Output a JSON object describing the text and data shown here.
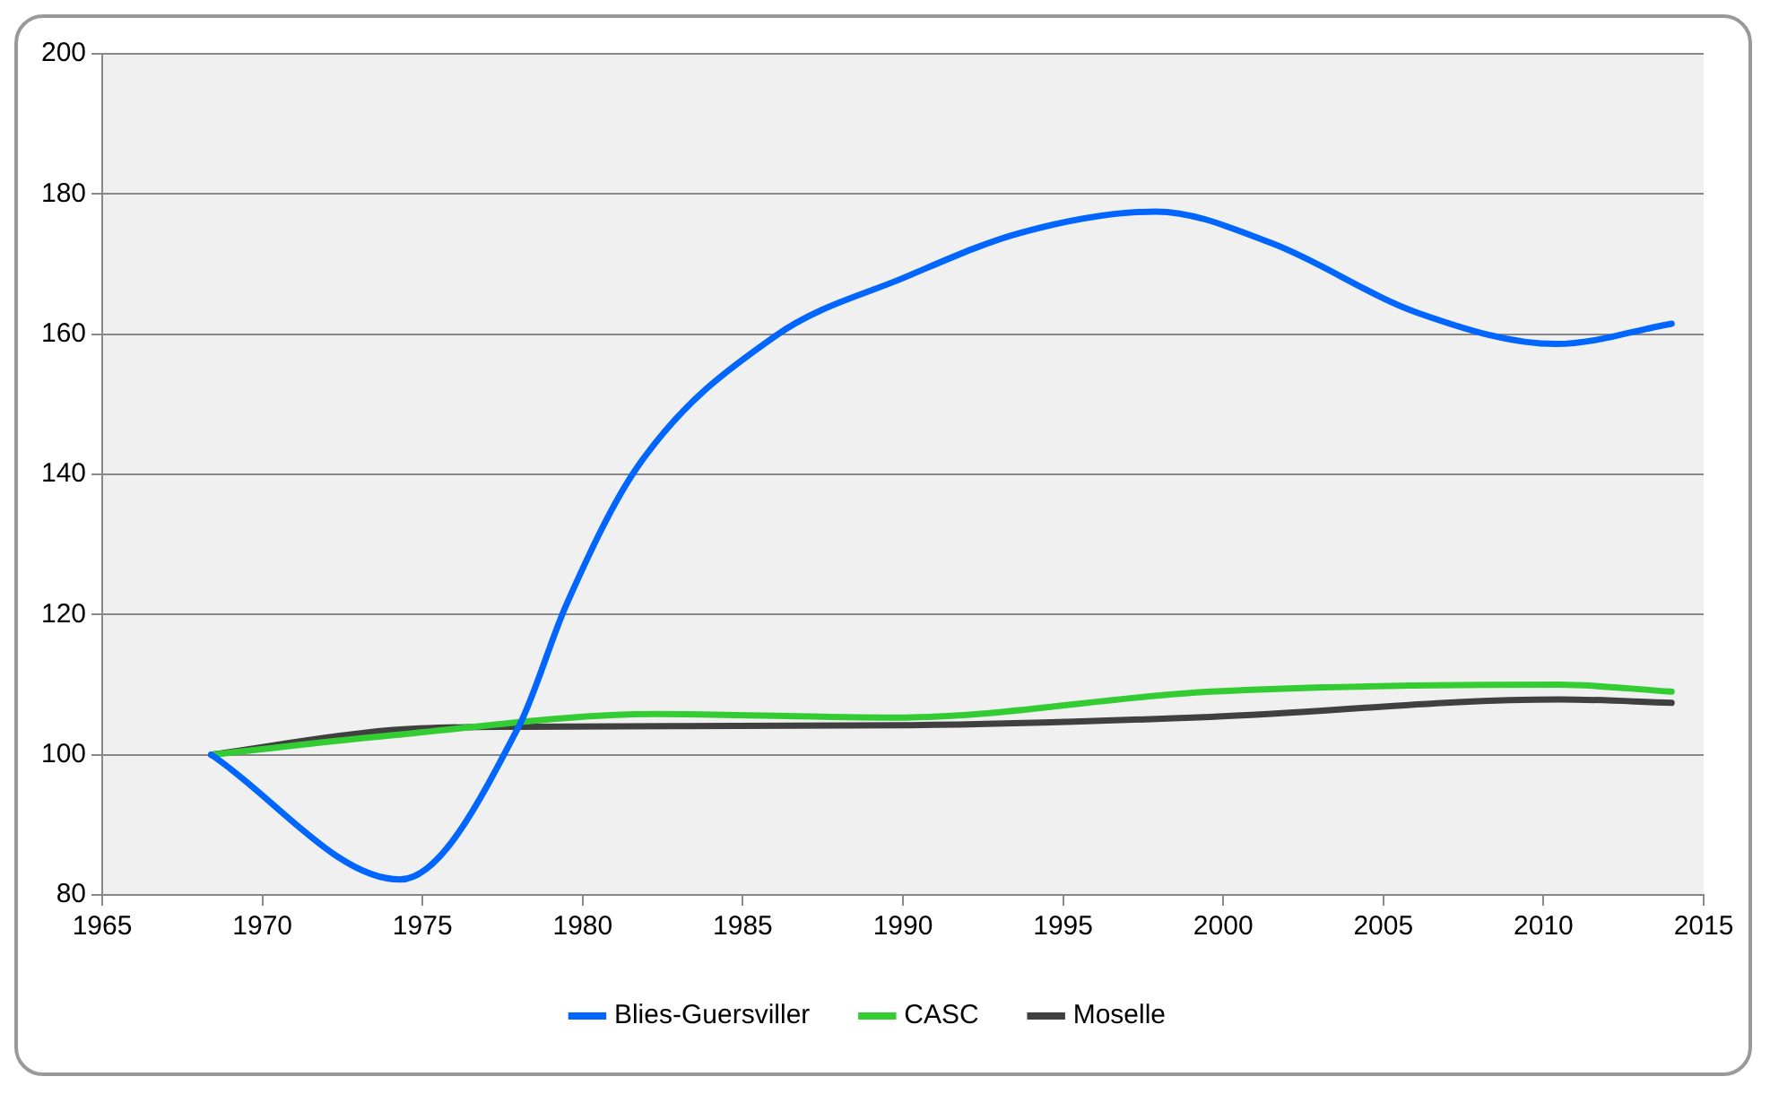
{
  "chart_data": {
    "type": "line",
    "series": [
      {
        "name": "Blies-Guersviller",
        "color": "#0066ff",
        "x": [
          1968.4,
          1974.3,
          1978,
          1979.5,
          1981.7,
          1986,
          1990,
          1993.7,
          1997.9,
          2001.5,
          2006.1,
          2010.4,
          2014
        ],
        "values": [
          100,
          82.2,
          104,
          121.5,
          141,
          159.7,
          168,
          174.5,
          177.5,
          173,
          163,
          158.6,
          161.5
        ]
      },
      {
        "name": "CASC",
        "color": "#33cc33",
        "x": [
          1968.4,
          1974.1,
          1982.3,
          1989.8,
          1999.6,
          2010.5,
          2014
        ],
        "values": [
          100,
          102.8,
          105.8,
          105.3,
          109,
          110,
          109
        ]
      },
      {
        "name": "Moselle",
        "color": "#404040",
        "x": [
          1968.4,
          1974,
          1978,
          1990,
          1999.6,
          2010.5,
          2014
        ],
        "values": [
          100,
          103.5,
          104,
          104.2,
          105.4,
          107.9,
          107.4
        ]
      }
    ],
    "xlim": [
      1965,
      2015
    ],
    "xticks": [
      1965,
      1970,
      1975,
      1980,
      1985,
      1990,
      1995,
      2000,
      2005,
      2010,
      2015
    ],
    "ylim": [
      80,
      200
    ],
    "yticks": [
      80,
      100,
      120,
      140,
      160,
      180,
      200
    ],
    "grid": "y",
    "legend": "bottom",
    "marker": "none",
    "line_style": "solid"
  }
}
